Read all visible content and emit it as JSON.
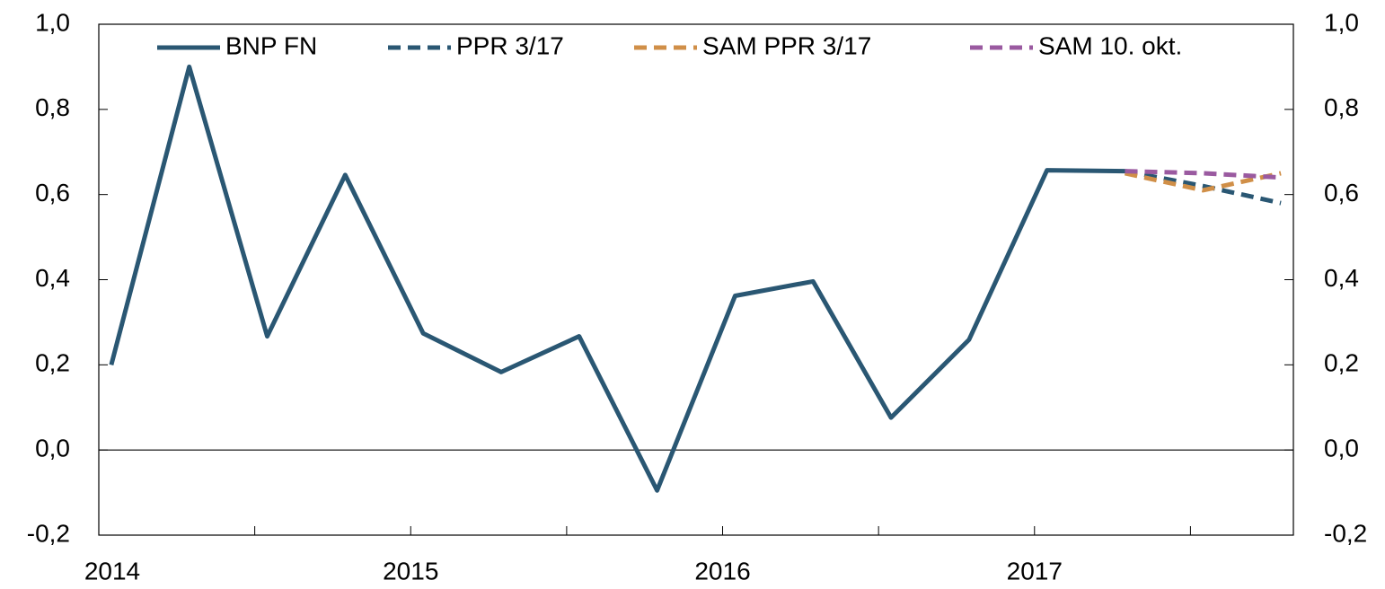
{
  "chart_data": {
    "type": "line",
    "x": [
      2014.04,
      2014.29,
      2014.54,
      2014.79,
      2015.04,
      2015.29,
      2015.54,
      2015.79,
      2016.04,
      2016.29,
      2016.54,
      2016.79,
      2017.04,
      2017.29,
      2017.54,
      2017.79
    ],
    "series": [
      {
        "name": "BNP FN",
        "color": "#2a5773",
        "dash": false,
        "values": [
          0.2,
          0.9,
          0.267,
          0.646,
          0.274,
          0.183,
          0.267,
          -0.095,
          0.362,
          0.396,
          0.076,
          0.259,
          0.657,
          0.655,
          null,
          null
        ]
      },
      {
        "name": "PPR 3/17",
        "color": "#2a5773",
        "dash": true,
        "values": [
          null,
          null,
          null,
          null,
          null,
          null,
          null,
          null,
          null,
          null,
          null,
          null,
          null,
          0.655,
          0.62,
          0.58
        ]
      },
      {
        "name": "SAM PPR 3/17",
        "color": "#d08f48",
        "dash": true,
        "values": [
          null,
          null,
          null,
          null,
          null,
          null,
          null,
          null,
          null,
          null,
          null,
          null,
          null,
          0.65,
          0.61,
          0.65
        ]
      },
      {
        "name": "SAM 10. okt.",
        "color": "#9a5aa0",
        "dash": true,
        "values": [
          null,
          null,
          null,
          null,
          null,
          null,
          null,
          null,
          null,
          null,
          null,
          null,
          null,
          0.655,
          0.65,
          0.64
        ]
      }
    ],
    "xlim": [
      2014,
      2017.83
    ],
    "xticks": [
      2014,
      2015,
      2016,
      2017
    ],
    "xminorticks": [
      2014.5,
      2015.5,
      2016.5,
      2017.5
    ],
    "ylim": [
      -0.2,
      1.0
    ],
    "yticks": [
      {
        "value": -0.2,
        "label": "-0,2"
      },
      {
        "value": 0,
        "label": "0,0"
      },
      {
        "value": 0.2,
        "label": "0,2"
      },
      {
        "value": 0.4,
        "label": "0,4"
      },
      {
        "value": 0.6,
        "label": "0,6"
      },
      {
        "value": 0.8,
        "label": "0,8"
      },
      {
        "value": 1.0,
        "label": "1,0"
      }
    ],
    "y2lim": [
      -0.2,
      1.0
    ],
    "y2ticks": [
      {
        "value": -0.2,
        "label": "-0,2"
      },
      {
        "value": 0,
        "label": "0,0"
      },
      {
        "value": 0.2,
        "label": "0,2"
      },
      {
        "value": 0.4,
        "label": "0,4"
      },
      {
        "value": 0.6,
        "label": "0,6"
      },
      {
        "value": 0.8,
        "label": "0,8"
      },
      {
        "value": 1.0,
        "label": "1,0"
      }
    ],
    "grid": false,
    "legend": "top"
  }
}
